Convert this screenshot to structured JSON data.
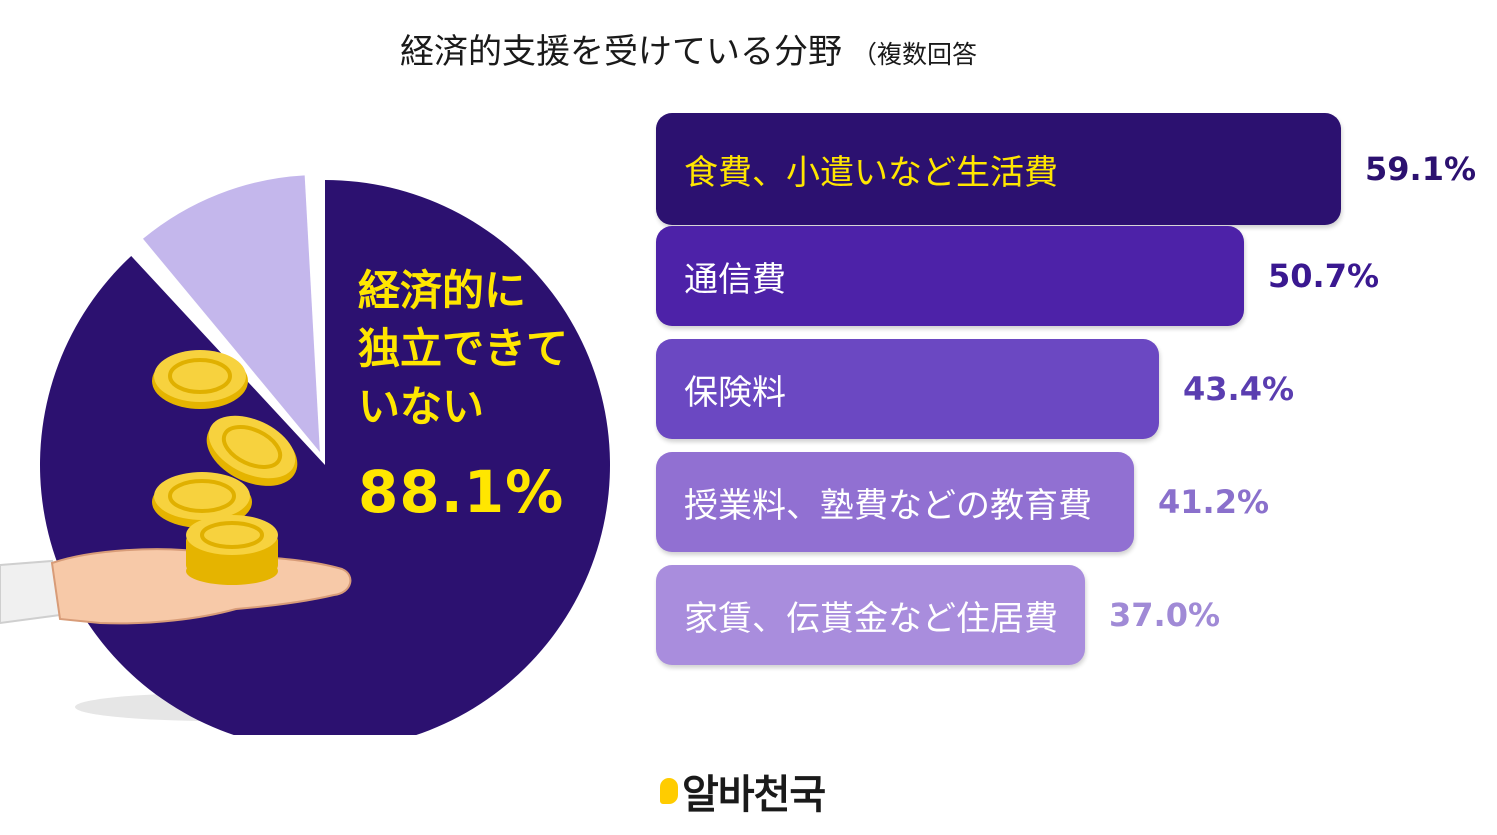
{
  "title": {
    "main": "経済的支援を受けている分野",
    "sub": "（複数回答"
  },
  "pie": {
    "label_lines": [
      "経済的に",
      "独立できて",
      "いない"
    ],
    "percent_text": "88.1%",
    "value": 88.1,
    "remainder": 11.9,
    "colors": {
      "main": "#2c1170",
      "remainder": "#c4b7ec",
      "text": "#ffe600"
    }
  },
  "chart_data": {
    "type": "bar",
    "title": "経済的支援を受けている分野（複数回答",
    "categories": [
      "食費、小遣いなど生活費",
      "通信費",
      "保険料",
      "授業料、塾費などの教育費",
      "家賃、伝貰金など住居費"
    ],
    "values": [
      59.1,
      50.7,
      43.4,
      41.2,
      37.0
    ],
    "value_labels": [
      "59.1%",
      "50.7%",
      "43.4%",
      "41.2%",
      "37.0%"
    ],
    "bar_colors": [
      "#2c1170",
      "#4d22a8",
      "#6b48c2",
      "#9170d2",
      "#a98ddd"
    ],
    "label_colors": [
      "#ffe600",
      "#ffffff",
      "#ffffff",
      "#ffffff",
      "#ffffff"
    ],
    "value_colors": [
      "#2c1170",
      "#3a1890",
      "#5a3db0",
      "#8a70cc",
      "#a08ad6"
    ]
  },
  "logo": {
    "text": "알바천국"
  }
}
